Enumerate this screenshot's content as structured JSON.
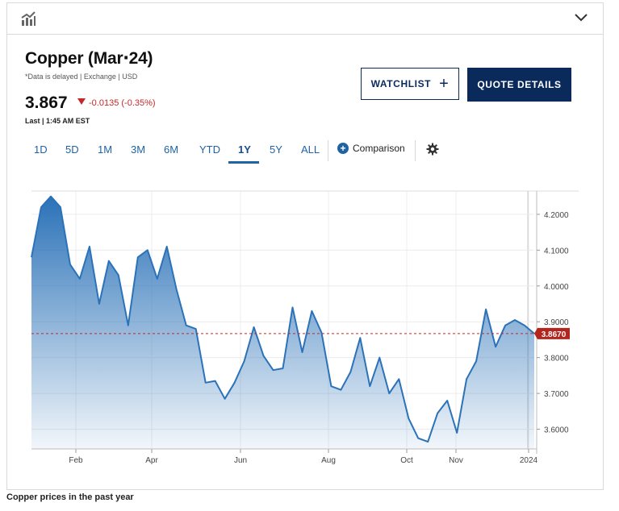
{
  "header": {
    "icon": "chart-icon",
    "toggle_icon": "chevron-down-icon"
  },
  "instrument": {
    "title": "Copper (Mar‧24)",
    "subtitle": "*Data is delayed | Exchange | USD",
    "price": "3.867",
    "change": "-0.0135 (-0.35%)",
    "change_direction": "down",
    "last_label": "Last | 1:45 AM EST"
  },
  "buttons": {
    "watchlist": "WATCHLIST",
    "quote_details": "QUOTE DETAILS"
  },
  "tabs": [
    "1D",
    "5D",
    "1M",
    "3M",
    "6M",
    "YTD",
    "1Y",
    "5Y",
    "ALL"
  ],
  "active_tab": "1Y",
  "comparison_label": "Comparison",
  "colors": {
    "navy": "#0a2a5c",
    "link_blue": "#1f63a5",
    "line": "#2b72b8",
    "down_red": "#c62828"
  },
  "chart_data": {
    "type": "area",
    "x_ticks": [
      "Feb",
      "Apr",
      "Jun",
      "Aug",
      "Oct",
      "Nov",
      "2024"
    ],
    "y_ticks": [
      "4.2000",
      "4.1000",
      "4.0000",
      "3.9000",
      "3.8000",
      "3.7000",
      "3.6000"
    ],
    "ylim": [
      3.545,
      4.265
    ],
    "last_value_label": "3.8670",
    "reference_line": 3.867,
    "grid": true,
    "series": [
      {
        "values": [
          4.08,
          4.22,
          4.25,
          4.22,
          4.06,
          4.02,
          4.11,
          3.95,
          4.07,
          4.03,
          3.89,
          4.08,
          4.1,
          4.02,
          4.11,
          3.99,
          3.89,
          3.88,
          3.73,
          3.735,
          3.685,
          3.73,
          3.79,
          3.885,
          3.805,
          3.765,
          3.77,
          3.94,
          3.815,
          3.93,
          3.87,
          3.72,
          3.71,
          3.76,
          3.855,
          3.72,
          3.8,
          3.7,
          3.74,
          3.63,
          3.575,
          3.565,
          3.645,
          3.68,
          3.59,
          3.74,
          3.79,
          3.935,
          3.83,
          3.89,
          3.905,
          3.89,
          3.867
        ]
      }
    ]
  },
  "caption": "Copper prices in the past year"
}
